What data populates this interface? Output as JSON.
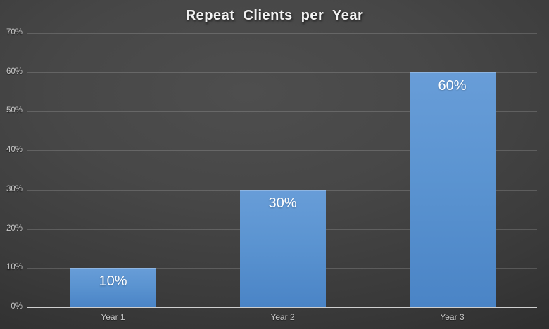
{
  "chart_data": {
    "type": "bar",
    "title": "Repeat Clients per Year",
    "categories": [
      "Year 1",
      "Year 2",
      "Year 3"
    ],
    "values": [
      10,
      30,
      60
    ],
    "value_labels": [
      "10%",
      "30%",
      "60%"
    ],
    "xlabel": "",
    "ylabel": "",
    "ylim": [
      0,
      70
    ],
    "yticks": [
      0,
      10,
      20,
      30,
      40,
      50,
      60,
      70
    ],
    "ytick_labels": [
      "0%",
      "10%",
      "20%",
      "30%",
      "40%",
      "50%",
      "60%",
      "70%"
    ],
    "grid": "horizontal",
    "legend": "none",
    "colors": {
      "bar_top": "#689dd8",
      "bar_mid": "#5b94d1",
      "bar_bottom": "#4a84c6",
      "background_center": "#4e4e4e",
      "background_edge": "#252525",
      "gridline": "rgba(255,255,255,0.16)",
      "axis_line": "#cfcfcf",
      "tick_label": "#c9c9c9",
      "title_text": "#f2f2f2",
      "data_label": "#ffffff"
    }
  }
}
